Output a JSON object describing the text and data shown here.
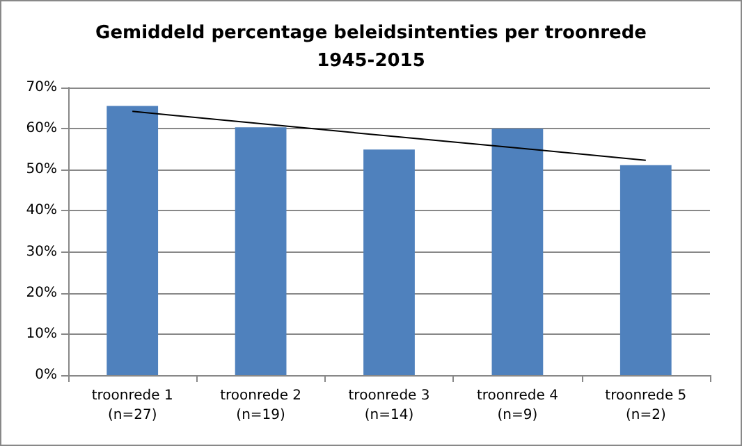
{
  "chart_data": {
    "type": "bar",
    "title": "Gemiddeld percentage beleidsintenties per troonrede\n1945-2015",
    "categories": [
      "troonrede 1\n(n=27)",
      "troonrede 2\n(n=19)",
      "troonrede 3\n(n=14)",
      "troonrede 4\n(n=9)",
      "troonrede 5\n(n=2)"
    ],
    "series": [
      {
        "color": "#4f81bd",
        "values": [
          65.5,
          60.3,
          54.9,
          60,
          51.1
        ]
      },
      {
        "type": "line",
        "color": "#000000",
        "marker": "none",
        "values": [
          64.2,
          61.2,
          58.2,
          55.3,
          52.3
        ]
      }
    ],
    "ylim": [
      0,
      70
    ],
    "yticks": [
      {
        "value": 0,
        "label": "0%"
      },
      {
        "value": 10,
        "label": "10%"
      },
      {
        "value": 20,
        "label": "20%"
      },
      {
        "value": 30,
        "label": "30%"
      },
      {
        "value": 40,
        "label": "40%"
      },
      {
        "value": 50,
        "label": "50%"
      },
      {
        "value": 60,
        "label": "60%"
      },
      {
        "value": 70,
        "label": "70%"
      }
    ],
    "grid": "y"
  }
}
